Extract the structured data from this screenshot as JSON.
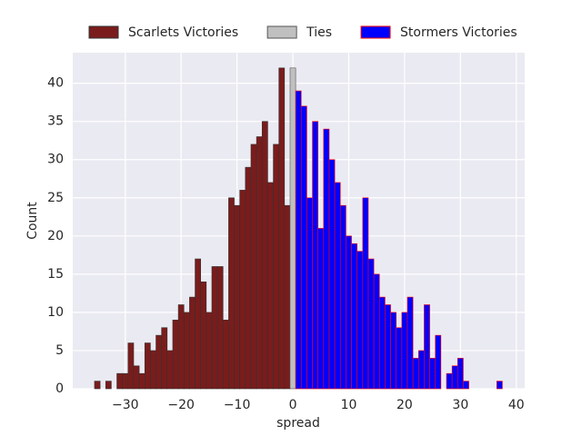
{
  "chart_data": {
    "type": "histogram",
    "xlabel": "spread",
    "ylabel": "Count",
    "bins": [
      -35.5,
      -34.5,
      -33.5,
      -32.5,
      -31.5,
      -30.5,
      -29.5,
      -28.5,
      -27.5,
      -26.5,
      -25.5,
      -24.5,
      -23.5,
      -22.5,
      -21.5,
      -20.5,
      -19.5,
      -18.5,
      -17.5,
      -16.5,
      -15.5,
      -14.5,
      -13.5,
      -12.5,
      -11.5,
      -10.5,
      -9.5,
      -8.5,
      -7.5,
      -6.5,
      -5.5,
      -4.5,
      -3.5,
      -2.5,
      -1.5,
      -0.5,
      0.5,
      1.5,
      2.5,
      3.5,
      4.5,
      5.5,
      6.5,
      7.5,
      8.5,
      9.5,
      10.5,
      11.5,
      12.5,
      13.5,
      14.5,
      15.5,
      16.5,
      17.5,
      18.5,
      19.5,
      20.5,
      21.5,
      22.5,
      23.5,
      24.5,
      25.5,
      26.5,
      27.5,
      28.5,
      29.5,
      30.5,
      31.5,
      32.5,
      33.5,
      34.5,
      35.5,
      36.5,
      37.5
    ],
    "series": [
      {
        "name": "Scarlets Victories",
        "color": "#7a1c1c",
        "edgecolor": "#333333",
        "values": [
          1,
          0,
          1,
          0,
          2,
          2,
          6,
          3,
          2,
          6,
          5,
          7,
          8,
          5,
          9,
          11,
          10,
          12,
          17,
          14,
          10,
          16,
          16,
          9,
          25,
          24,
          26,
          29,
          32,
          33,
          35,
          27,
          32,
          42,
          24,
          0,
          0,
          0,
          0,
          0,
          0,
          0,
          0,
          0,
          0,
          0,
          0,
          0,
          0,
          0,
          0,
          0,
          0,
          0,
          0,
          0,
          0,
          0,
          0,
          0,
          0,
          0,
          0,
          0,
          0,
          0,
          0,
          0,
          0,
          0,
          0,
          0,
          0
        ]
      },
      {
        "name": "Ties",
        "color": "#c0c0c0",
        "edgecolor": "#555555",
        "values": [
          0,
          0,
          0,
          0,
          0,
          0,
          0,
          0,
          0,
          0,
          0,
          0,
          0,
          0,
          0,
          0,
          0,
          0,
          0,
          0,
          0,
          0,
          0,
          0,
          0,
          0,
          0,
          0,
          0,
          0,
          0,
          0,
          0,
          0,
          0,
          42,
          0,
          0,
          0,
          0,
          0,
          0,
          0,
          0,
          0,
          0,
          0,
          0,
          0,
          0,
          0,
          0,
          0,
          0,
          0,
          0,
          0,
          0,
          0,
          0,
          0,
          0,
          0,
          0,
          0,
          0,
          0,
          0,
          0,
          0,
          0,
          0,
          0
        ]
      },
      {
        "name": "Stormers Victories",
        "color": "#0000ff",
        "edgecolor": "#ff0000",
        "values": [
          0,
          0,
          0,
          0,
          0,
          0,
          0,
          0,
          0,
          0,
          0,
          0,
          0,
          0,
          0,
          0,
          0,
          0,
          0,
          0,
          0,
          0,
          0,
          0,
          0,
          0,
          0,
          0,
          0,
          0,
          0,
          0,
          0,
          0,
          0,
          0,
          39,
          37,
          25,
          35,
          21,
          34,
          30,
          27,
          24,
          20,
          19,
          18,
          25,
          17,
          15,
          12,
          11,
          10,
          8,
          10,
          12,
          4,
          5,
          11,
          4,
          7,
          0,
          2,
          3,
          4,
          1,
          0,
          0,
          0,
          0,
          0,
          1
        ]
      }
    ],
    "xlim": [
      -39.4,
      41.5
    ],
    "ylim": [
      0,
      44
    ],
    "xticks": [
      {
        "value": -30,
        "label": "−30"
      },
      {
        "value": -20,
        "label": "−20"
      },
      {
        "value": -10,
        "label": "−10"
      },
      0,
      10,
      20,
      30,
      40
    ],
    "yticks": [
      0,
      5,
      10,
      15,
      20,
      25,
      30,
      35,
      40
    ],
    "grid": true,
    "legend": "top"
  }
}
